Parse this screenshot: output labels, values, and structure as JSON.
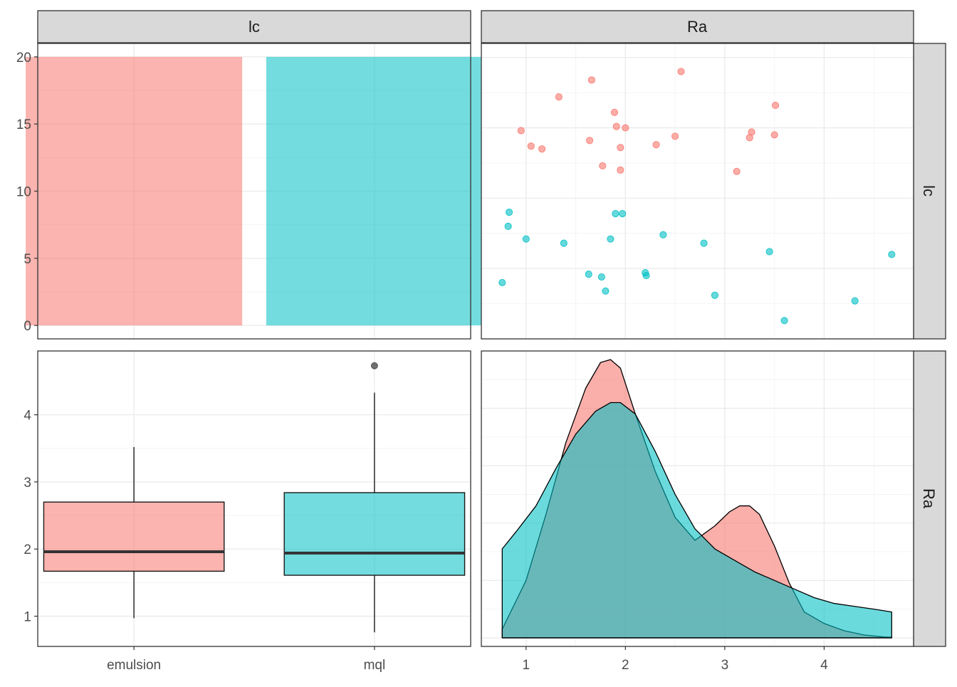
{
  "colors": {
    "emulsion": "#F8766D",
    "mql": "#00BFC4",
    "strip_fill": "#D9D9D9",
    "border": "#333333",
    "grid_major": "#EBEBEB",
    "grid_minor": "#F4F4F4",
    "axis_text": "#4D4D4D",
    "outlier": "#4D4D4D"
  },
  "strips": {
    "col1": "lc",
    "col2": "Ra",
    "row1": "lc",
    "row2": "Ra"
  },
  "chart_data": [
    {
      "id": "lc-bar",
      "type": "bar",
      "categories": [
        "emulsion",
        "mql"
      ],
      "values": [
        20,
        20
      ],
      "ylim": [
        -1,
        21
      ],
      "yticks": [
        0,
        5,
        10,
        15,
        20
      ]
    },
    {
      "id": "lc-vs-ra-scatter",
      "type": "scatter",
      "xlim": [
        0.55,
        4.9
      ],
      "ylim": [
        0,
        21
      ],
      "xticks": [
        1,
        2,
        3,
        4
      ],
      "series": [
        {
          "name": "emulsion",
          "x": [
            2.56,
            1.66,
            1.33,
            3.51,
            1.89,
            1.91,
            0.95,
            2.0,
            3.5,
            3.27,
            2.5,
            1.64,
            3.25,
            1.05,
            2.31,
            1.95,
            1.16,
            1.77,
            3.12,
            1.95
          ],
          "y": [
            19.0,
            18.4,
            17.2,
            16.6,
            16.1,
            15.1,
            14.8,
            15.0,
            14.5,
            14.7,
            14.4,
            14.1,
            14.3,
            13.7,
            13.8,
            13.6,
            13.5,
            12.3,
            11.9,
            12.0
          ]
        },
        {
          "name": "mql",
          "x": [
            0.83,
            0.82,
            1.9,
            1.97,
            1.0,
            2.38,
            1.85,
            1.38,
            2.79,
            3.45,
            4.68,
            2.2,
            2.21,
            1.63,
            1.76,
            0.76,
            1.8,
            2.9,
            4.31,
            3.6
          ],
          "y": [
            9.0,
            8.0,
            8.9,
            8.9,
            7.1,
            7.4,
            7.1,
            6.8,
            6.8,
            6.2,
            6.0,
            4.7,
            4.5,
            4.6,
            4.4,
            4.0,
            3.4,
            3.1,
            2.7,
            1.3
          ]
        }
      ]
    },
    {
      "id": "ra-boxplot",
      "type": "box",
      "categories": [
        "emulsion",
        "mql"
      ],
      "ylim": [
        0.55,
        4.95
      ],
      "yticks": [
        1,
        2,
        3,
        4
      ],
      "boxes": [
        {
          "name": "emulsion",
          "min": 0.97,
          "q1": 1.67,
          "median": 1.96,
          "q3": 2.7,
          "max": 3.52,
          "outliers": []
        },
        {
          "name": "mql",
          "min": 0.76,
          "q1": 1.61,
          "median": 1.94,
          "q3": 2.84,
          "max": 4.33,
          "outliers": [
            4.73
          ]
        }
      ],
      "xlabels": [
        "emulsion",
        "mql"
      ]
    },
    {
      "id": "ra-density",
      "type": "area",
      "xlim": [
        0.55,
        4.9
      ],
      "ylim": [
        -0.03,
        1.0
      ],
      "xticks": [
        1,
        2,
        3,
        4
      ],
      "series": [
        {
          "name": "emulsion",
          "x": [
            0.76,
            1.0,
            1.2,
            1.4,
            1.6,
            1.75,
            1.85,
            1.95,
            2.1,
            2.3,
            2.5,
            2.7,
            2.9,
            3.05,
            3.15,
            3.25,
            3.35,
            3.5,
            3.65,
            3.8,
            4.0,
            4.2,
            4.4,
            4.6,
            4.68
          ],
          "y": [
            0.03,
            0.2,
            0.43,
            0.68,
            0.87,
            0.96,
            0.97,
            0.94,
            0.78,
            0.58,
            0.42,
            0.34,
            0.39,
            0.44,
            0.46,
            0.46,
            0.43,
            0.32,
            0.19,
            0.09,
            0.05,
            0.025,
            0.01,
            0.003,
            0.002
          ]
        },
        {
          "name": "mql",
          "x": [
            0.76,
            0.9,
            1.1,
            1.3,
            1.5,
            1.7,
            1.85,
            1.95,
            2.1,
            2.3,
            2.5,
            2.7,
            2.9,
            3.1,
            3.3,
            3.5,
            3.7,
            3.9,
            4.1,
            4.3,
            4.5,
            4.68
          ],
          "y": [
            0.31,
            0.37,
            0.46,
            0.59,
            0.71,
            0.79,
            0.82,
            0.82,
            0.78,
            0.65,
            0.5,
            0.38,
            0.31,
            0.27,
            0.23,
            0.2,
            0.17,
            0.14,
            0.12,
            0.11,
            0.1,
            0.09
          ]
        }
      ]
    }
  ]
}
